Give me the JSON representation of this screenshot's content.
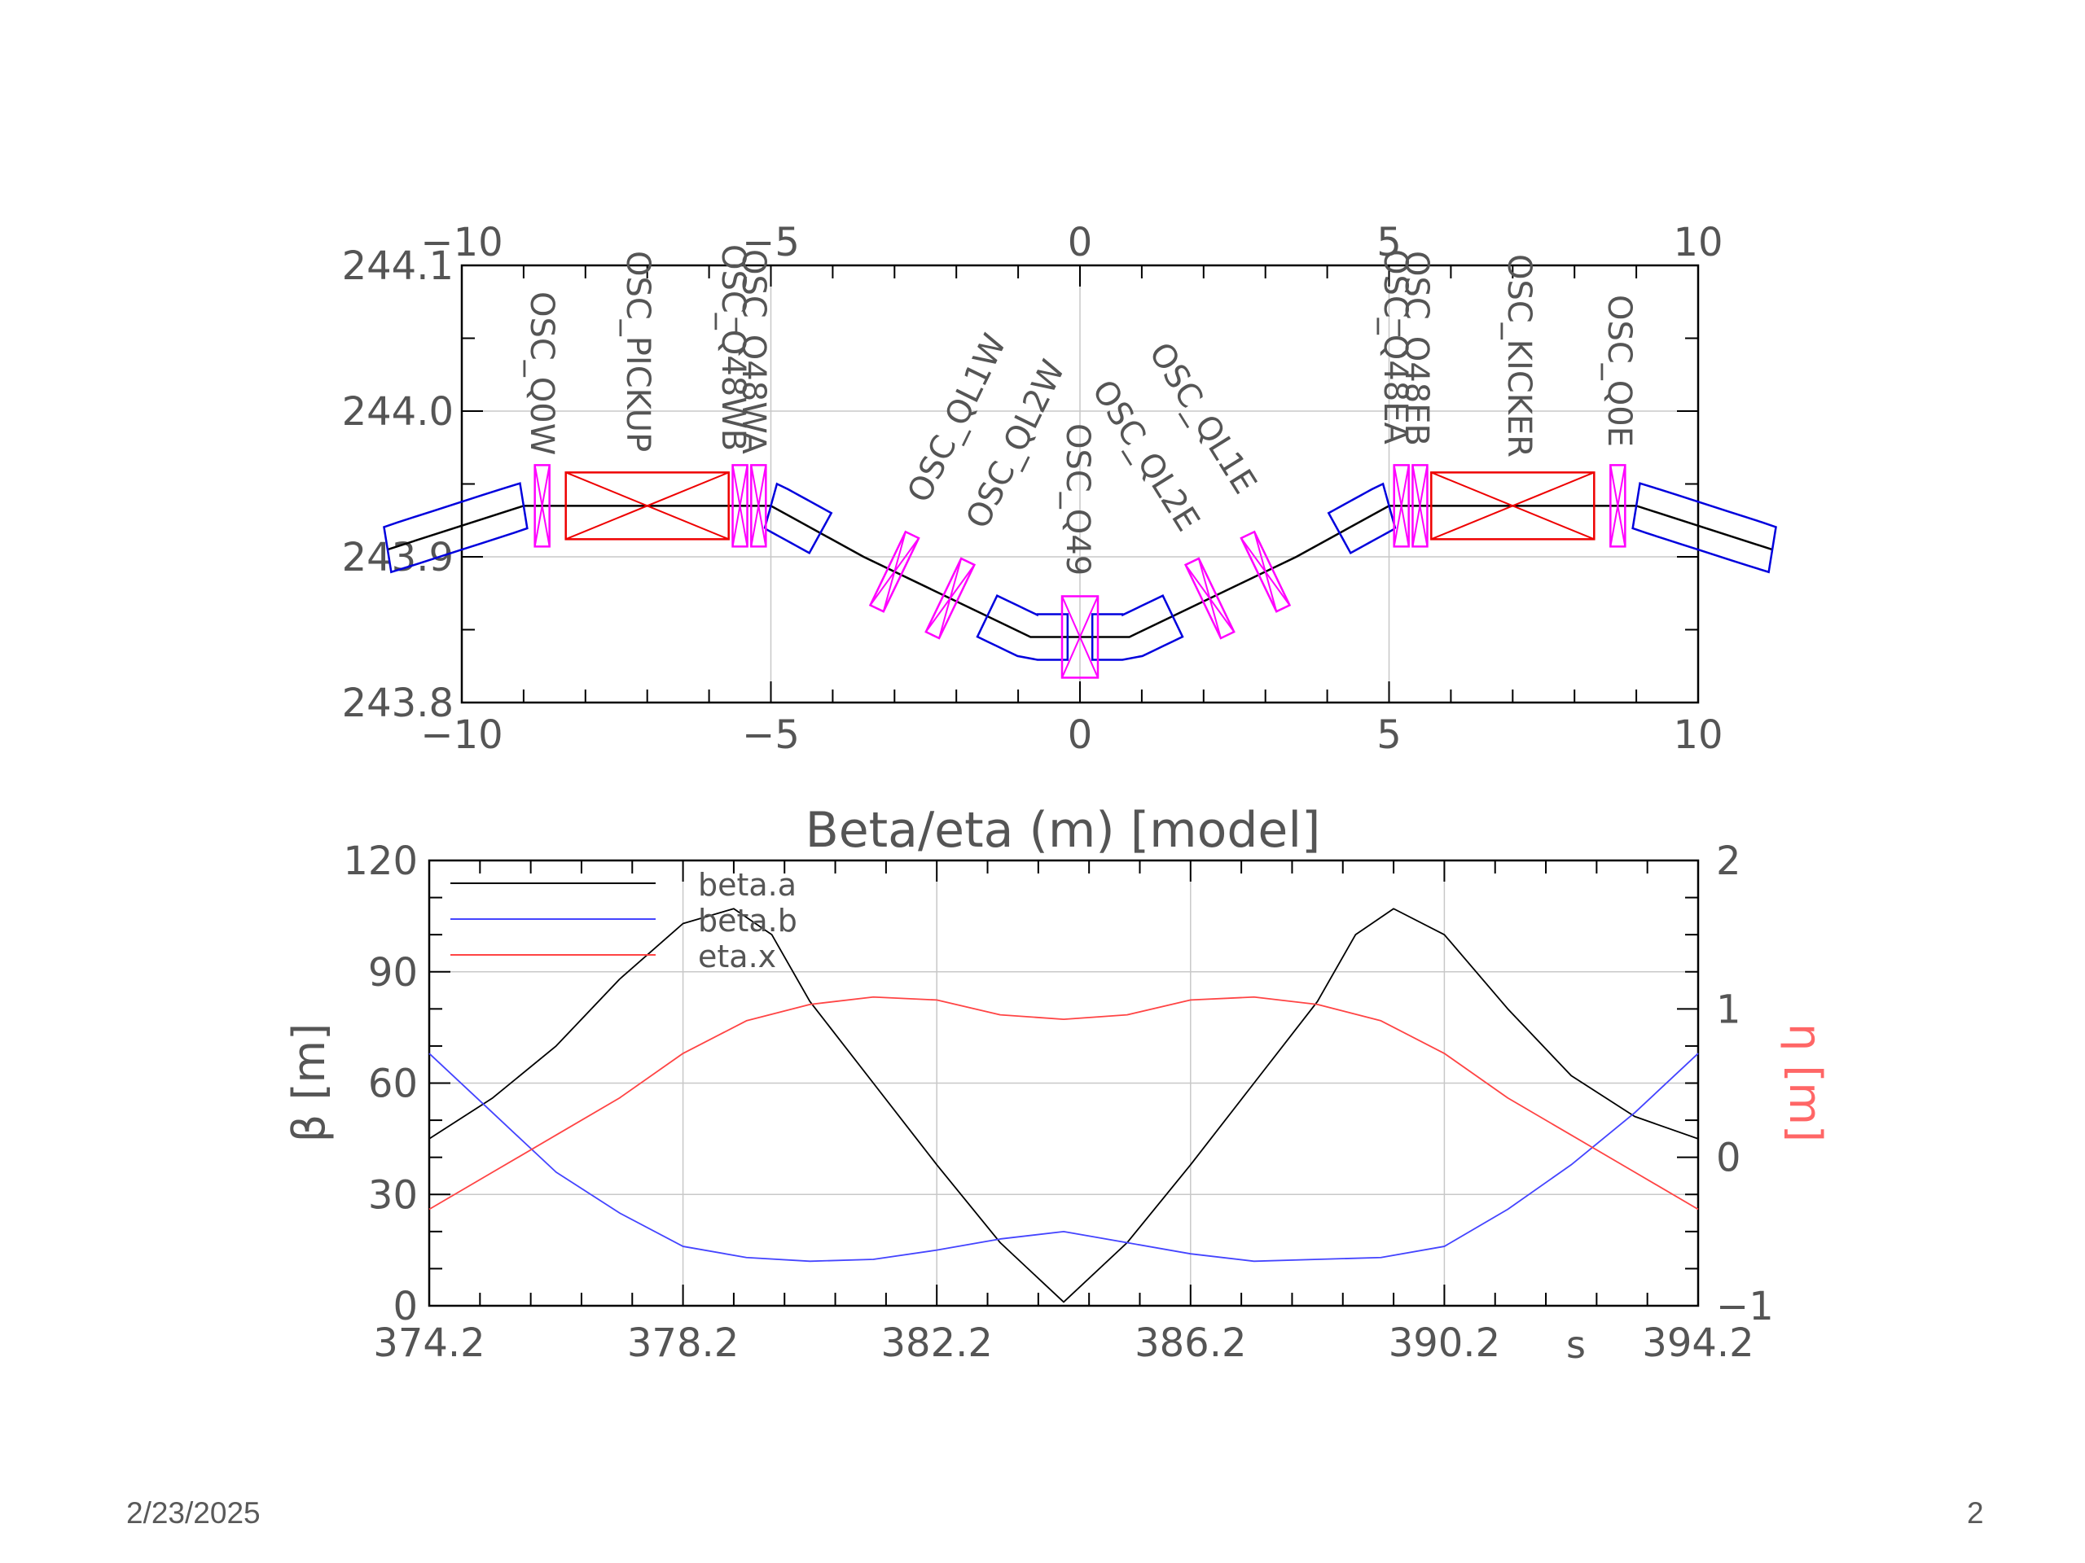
{
  "colors": {
    "axis": "#000000",
    "text": "#555555",
    "grid": "#c8c8c8",
    "dipole": "#0000dd",
    "quad": "#ff00ff",
    "undulator": "#ee0000",
    "beta_a": "#000000",
    "beta_b": "#4444ff",
    "eta_x": "#ff4444",
    "eta_axis_label": "#ff6666"
  },
  "layout_plot": {
    "x_ticks": [
      "−10",
      "−5",
      "0",
      "5",
      "10"
    ],
    "x_tick_values": [
      -10,
      -5,
      0,
      5,
      10
    ],
    "y_ticks": [
      "243.8",
      "243.9",
      "244.0",
      "244.1"
    ],
    "y_tick_values": [
      243.8,
      243.9,
      244.0,
      244.1
    ],
    "xlim": [
      -10,
      10
    ],
    "ylim": [
      243.8,
      244.1
    ],
    "orbit_x": [
      -11.2,
      -9.0,
      -5.0,
      -3.5,
      -0.8,
      0.0,
      0.8,
      3.5,
      5.0,
      9.0,
      11.2
    ],
    "orbit_y": [
      243.905,
      243.935,
      243.935,
      243.9,
      243.845,
      243.845,
      243.845,
      243.9,
      243.935,
      243.935,
      243.905
    ],
    "elements": [
      {
        "label": "OSC_Q0W",
        "kind": "quad",
        "s": -8.7,
        "y": 243.93,
        "angle": 0
      },
      {
        "label": "OSC_PICKUP",
        "kind": "undulator",
        "s": -7.0,
        "y": 243.935,
        "angle": 0
      },
      {
        "label": "OSC_Q48WA",
        "kind": "quad",
        "s": -5.5,
        "y": 243.935,
        "angle": 0
      },
      {
        "label": "OSC_Q48WB",
        "kind": "quad",
        "s": -5.2,
        "y": 243.935,
        "angle": 0
      },
      {
        "label": "OSC_QL1W",
        "kind": "quad",
        "s": -3.0,
        "y": 243.89,
        "angle": 0
      },
      {
        "label": "OSC_QL2W",
        "kind": "quad",
        "s": -2.1,
        "y": 243.868,
        "angle": 0
      },
      {
        "label": "OSC_Q49",
        "kind": "quad",
        "s": 0.0,
        "y": 243.845,
        "angle": 0
      },
      {
        "label": "OSC_QL2E",
        "kind": "quad",
        "s": 2.1,
        "y": 243.868,
        "angle": 0
      },
      {
        "label": "OSC_QL1E",
        "kind": "quad",
        "s": 3.0,
        "y": 243.89,
        "angle": 0
      },
      {
        "label": "OSC_Q48EA",
        "kind": "quad",
        "s": 5.2,
        "y": 243.935,
        "angle": 0
      },
      {
        "label": "OSC_Q48EB",
        "kind": "quad",
        "s": 5.5,
        "y": 243.935,
        "angle": 0
      },
      {
        "label": "OSC_KICKER",
        "kind": "undulator",
        "s": 7.0,
        "y": 243.935,
        "angle": 0
      },
      {
        "label": "OSC_Q0E",
        "kind": "quad",
        "s": 8.7,
        "y": 243.93,
        "angle": 0
      }
    ]
  },
  "chart_data": {
    "type": "line",
    "title": "Beta/eta (m)   [model]",
    "xlabel": "s",
    "ylabel": "β [m]",
    "y2label": "η [m]",
    "xlim": [
      374.2,
      394.2
    ],
    "ylim": [
      0,
      120
    ],
    "y2lim": [
      -1,
      2
    ],
    "x_ticks": [
      "374.2",
      "378.2",
      "382.2",
      "386.2",
      "390.2",
      "394.2"
    ],
    "y_ticks": [
      "0",
      "30",
      "60",
      "90",
      "120"
    ],
    "y2_ticks": [
      "−1",
      "0",
      "1",
      "2"
    ],
    "legend_placement": "top-left",
    "series": [
      {
        "name": "beta.a",
        "axis": "left",
        "x": [
          374.2,
          375.2,
          376.2,
          377.2,
          378.2,
          379.0,
          379.6,
          380.2,
          381.2,
          382.2,
          383.2,
          384.2,
          385.2,
          386.2,
          387.2,
          388.2,
          388.8,
          389.4,
          390.2,
          391.2,
          392.2,
          393.2,
          394.2
        ],
        "values": [
          45,
          56,
          70,
          88,
          103,
          107,
          100,
          82,
          60,
          38,
          17,
          1,
          17,
          38,
          60,
          82,
          100,
          107,
          100,
          80,
          62,
          51,
          45
        ]
      },
      {
        "name": "beta.b",
        "axis": "left",
        "x": [
          374.2,
          375.2,
          376.2,
          377.2,
          378.2,
          379.2,
          380.2,
          381.2,
          382.2,
          383.2,
          384.2,
          385.2,
          386.2,
          387.2,
          388.2,
          389.2,
          390.2,
          391.2,
          392.2,
          393.2,
          394.2
        ],
        "values": [
          68,
          52,
          36,
          25,
          16,
          13,
          12,
          12.5,
          15,
          18,
          20,
          17,
          14,
          12,
          12.5,
          13,
          16,
          26,
          38,
          52,
          68
        ]
      },
      {
        "name": "eta.x",
        "axis": "right",
        "x": [
          374.2,
          375.2,
          376.2,
          377.2,
          378.2,
          379.2,
          380.2,
          381.2,
          382.2,
          383.2,
          384.2,
          385.2,
          386.2,
          387.2,
          388.2,
          389.2,
          390.2,
          391.2,
          392.2,
          393.2,
          394.2
        ],
        "values": [
          -0.35,
          -0.1,
          0.15,
          0.4,
          0.7,
          0.92,
          1.03,
          1.08,
          1.06,
          0.96,
          0.93,
          0.96,
          1.06,
          1.08,
          1.03,
          0.92,
          0.7,
          0.4,
          0.15,
          -0.1,
          -0.35
        ]
      }
    ]
  },
  "footer": {
    "date": "2/23/2025",
    "page": "2"
  }
}
